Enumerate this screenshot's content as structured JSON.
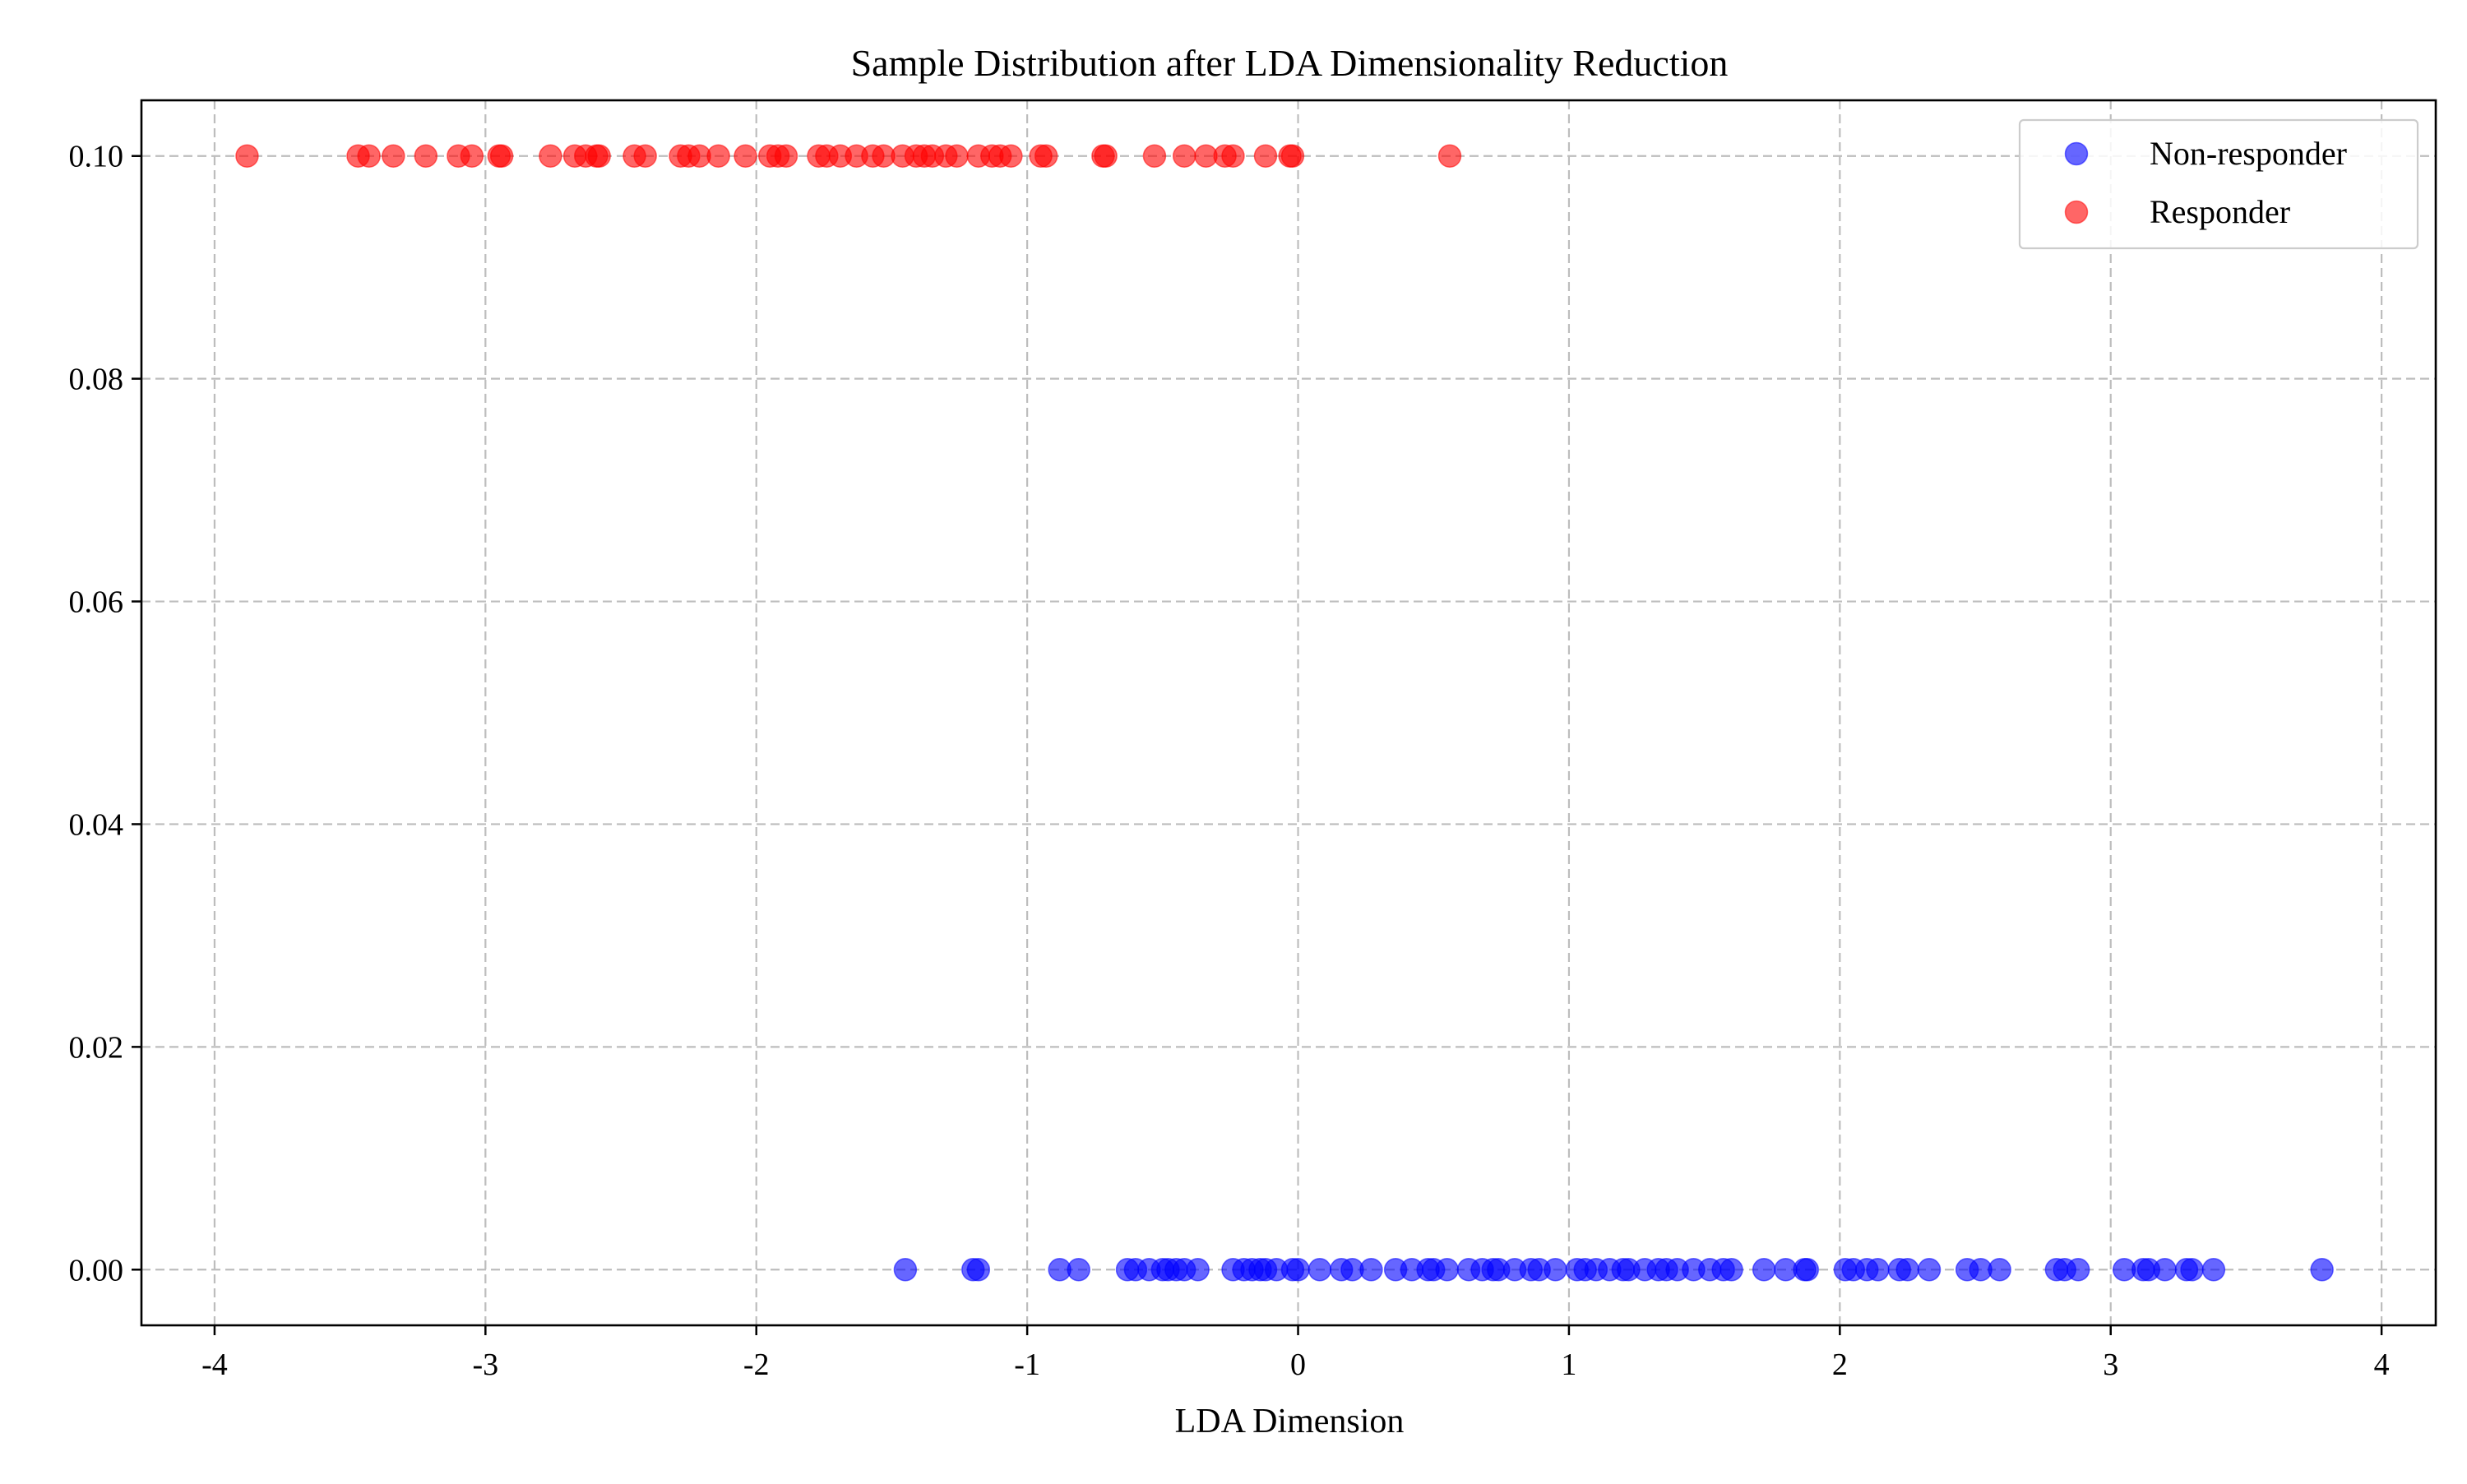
{
  "chart_data": {
    "type": "scatter",
    "title": "Sample Distribution after LDA Dimensionality Reduction",
    "xlabel": "LDA Dimension",
    "ylabel": "",
    "xlim": [
      -4.27,
      4.2
    ],
    "ylim": [
      -0.005,
      0.105
    ],
    "xticks": [
      -4,
      -3,
      -2,
      -1,
      0,
      1,
      2,
      3,
      4
    ],
    "xtick_labels": [
      "-4",
      "-3",
      "-2",
      "-1",
      "0",
      "1",
      "2",
      "3",
      "4"
    ],
    "yticks": [
      0.0,
      0.02,
      0.04,
      0.06,
      0.08,
      0.1
    ],
    "ytick_labels": [
      "0.00",
      "0.02",
      "0.04",
      "0.06",
      "0.08",
      "0.10"
    ],
    "grid": true,
    "legend_position": "top-right",
    "series": [
      {
        "name": "Non-responder",
        "color": "#0000ff",
        "alpha": 0.6,
        "y_constant": 0.0,
        "x": [
          -1.45,
          -1.2,
          -1.18,
          -0.88,
          -0.81,
          -0.63,
          -0.6,
          -0.55,
          -0.5,
          -0.48,
          -0.45,
          -0.42,
          -0.37,
          -0.24,
          -0.2,
          -0.17,
          -0.14,
          -0.12,
          -0.08,
          -0.02,
          0.0,
          0.08,
          0.16,
          0.2,
          0.27,
          0.36,
          0.42,
          0.48,
          0.5,
          0.55,
          0.63,
          0.68,
          0.72,
          0.74,
          0.8,
          0.86,
          0.89,
          0.95,
          1.03,
          1.06,
          1.1,
          1.15,
          1.2,
          1.22,
          1.28,
          1.33,
          1.36,
          1.4,
          1.46,
          1.52,
          1.57,
          1.6,
          1.72,
          1.8,
          1.87,
          1.88,
          2.02,
          2.05,
          2.1,
          2.14,
          2.22,
          2.25,
          2.33,
          2.47,
          2.52,
          2.59,
          2.8,
          2.83,
          2.88,
          3.05,
          3.12,
          3.14,
          3.2,
          3.28,
          3.3,
          3.38,
          3.78
        ]
      },
      {
        "name": "Responder",
        "color": "#ff0000",
        "alpha": 0.6,
        "y_constant": 0.1,
        "x": [
          -3.88,
          -3.47,
          -3.43,
          -3.34,
          -3.22,
          -3.1,
          -3.05,
          -2.95,
          -2.94,
          -2.76,
          -2.67,
          -2.63,
          -2.59,
          -2.58,
          -2.45,
          -2.41,
          -2.28,
          -2.25,
          -2.21,
          -2.14,
          -2.04,
          -1.95,
          -1.92,
          -1.89,
          -1.77,
          -1.74,
          -1.69,
          -1.63,
          -1.57,
          -1.53,
          -1.46,
          -1.41,
          -1.38,
          -1.35,
          -1.3,
          -1.26,
          -1.18,
          -1.13,
          -1.1,
          -1.06,
          -0.95,
          -0.93,
          -0.72,
          -0.71,
          -0.53,
          -0.42,
          -0.34,
          -0.27,
          -0.24,
          -0.12,
          -0.03,
          -0.02,
          0.56
        ]
      }
    ]
  }
}
